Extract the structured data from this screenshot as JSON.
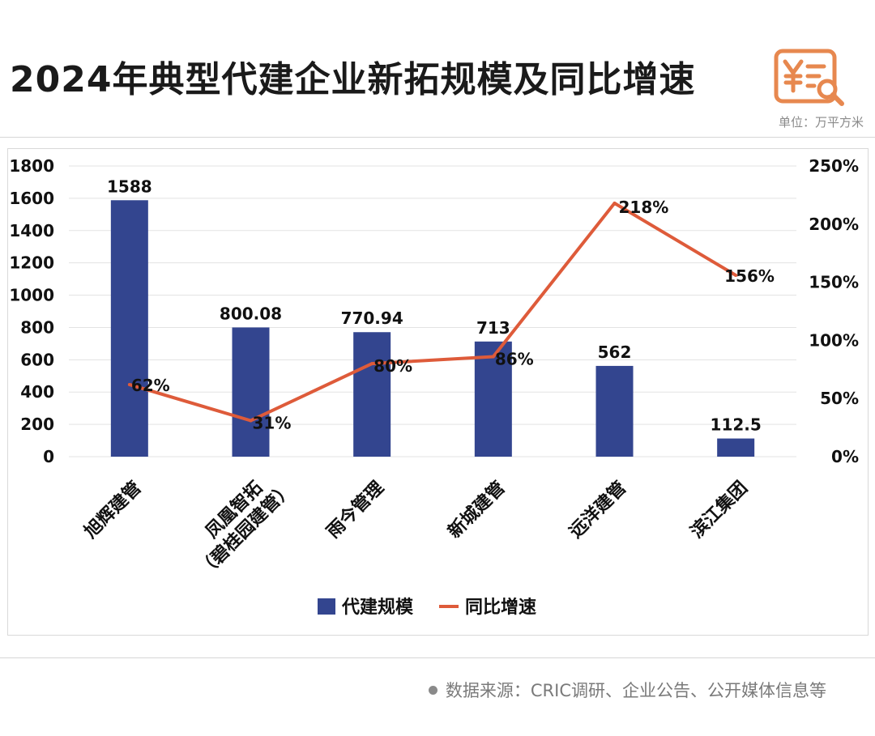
{
  "header": {
    "title": "2024年典型代建企业新拓规模及同比增速",
    "unit": "单位：万平方米",
    "logo_icon": "yen-document-search-icon"
  },
  "colors": {
    "bar": "#33458f",
    "line": "#de5b3a",
    "logo": "#e7884f",
    "grid": "#e3e3e3"
  },
  "chart_data": {
    "type": "bar",
    "categories": [
      "旭辉建管",
      "凤凰智拓\n（碧桂园建管）",
      "雨今管理",
      "新城建管",
      "远洋建管",
      "滨江集团"
    ],
    "series": [
      {
        "name": "代建规模",
        "type": "bar",
        "axis": "left",
        "values": [
          1588,
          800.08,
          770.94,
          713,
          562,
          112.5
        ],
        "labels": [
          "1588",
          "800.08",
          "770.94",
          "713",
          "562",
          "112.5"
        ]
      },
      {
        "name": "同比增速",
        "type": "line",
        "axis": "right",
        "values": [
          62,
          31,
          80,
          86,
          218,
          156
        ],
        "labels": [
          "62%",
          "31%",
          "80%",
          "86%",
          "218%",
          "156%"
        ]
      }
    ],
    "y_left": {
      "min": 0,
      "max": 1800,
      "ticks": [
        "0",
        "200",
        "400",
        "600",
        "800",
        "1000",
        "1200",
        "1400",
        "1600",
        "1800"
      ]
    },
    "y_right": {
      "min": 0,
      "max": 250,
      "ticks": [
        "0%",
        "50%",
        "100%",
        "150%",
        "200%",
        "250%"
      ]
    },
    "grid": true,
    "legend_position": "bottom"
  },
  "footer": {
    "source": "数据来源：CRIC调研、企业公告、公开媒体信息等"
  }
}
